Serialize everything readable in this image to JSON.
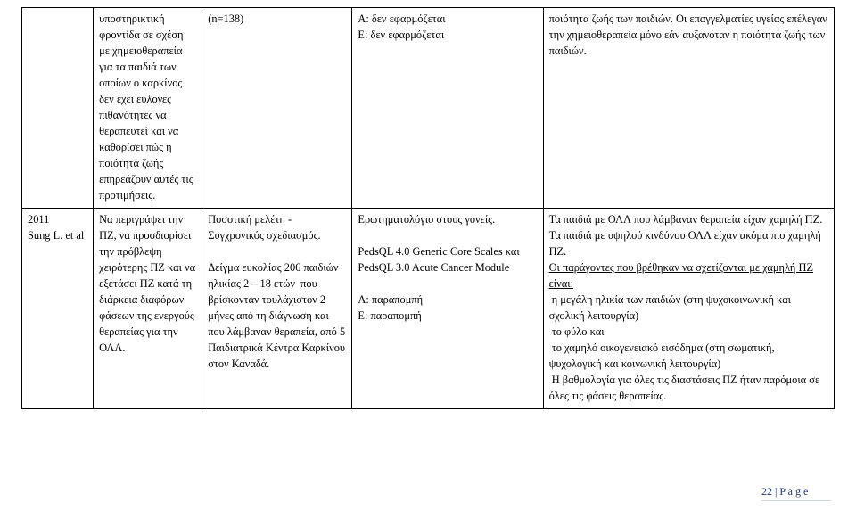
{
  "rows": [
    {
      "c0": "",
      "c1": "υποστηρικτική φροντίδα σε σχέση με χημειοθεραπεία για τα παιδιά των οποίων ο καρκίνος δεν έχει εύλογες πιθανότητες να θεραπευτεί και να καθορίσει πώς η ποιότητα ζωής επηρεάζουν αυτές τις προτιμήσεις.",
      "c2": "(n=138)",
      "c3": "Α: δεν εφαρμόζεται\nΕ: δεν εφαρμόζεται",
      "c4": "ποιότητα ζωής των παιδιών. Οι επαγγελματίες υγείας επέλεγαν την χημειοθεραπεία μόνο εάν αυξανόταν η ποιότητα ζωής των παιδιών."
    }
  ],
  "row2": {
    "c0": "2011\nSung L. et al",
    "c1": "Να περιγράψει την ΠΖ, να προσδιορίσει την πρόβλεψη χειρότερης ΠΖ και να εξετάσει ΠΖ κατά τη διάρκεια διαφόρων φάσεων της ενεργούς θεραπείας για την ΟΛΛ.",
    "c2": "Ποσοτική μελέτη - Συγχρονικός σχεδιασμός.\n\nΔείγμα ευκολίας 206 παιδιών ηλικίας 2 – 18 ετών  που βρίσκονταν τουλάχιστον 2 μήνες από τη διάγνωση και που λάμβαναν θεραπεία, από 5 Παιδιατρικά Κέντρα Καρκίνου στον Καναδά.",
    "c3": "Ερωτηματολόγιο στους γονείς.\n\nPedsQL 4.0 Generic Core Scales και PedsQL 3.0 Acute Cancer Module\n\nΑ: παραπομπή\nΕ: παραπομπή",
    "c4_part1": "Τα παιδιά με ΟΛΛ που λάμβαναν θεραπεία είχαν χαμηλή ΠΖ. Τα παιδιά με υψηλού κινδύνου ΟΛΛ είχαν ακόμα πιο χαμηλή ΠΖ.\n",
    "c4_u": "Οι παράγοντες που βρέθηκαν να σχετίζονται με χαμηλή ΠΖ είναι:",
    "c4_part2": "\n η μεγάλη ηλικία των παιδιών (στη ψυχοκοινωνική και σχολική λειτουργία)\n το φύλο και\n το χαμηλό οικογενειακό εισόδημα (στη σωματική, ψυχολογική και κοινωνική λειτουργία)\n Η βαθμολογία για όλες τις διαστάσεις ΠΖ ήταν παρόμοια σε όλες τις φάσεις θεραπείας."
  },
  "footer": {
    "num": "22",
    "sep": " | ",
    "label": "P a g e"
  }
}
